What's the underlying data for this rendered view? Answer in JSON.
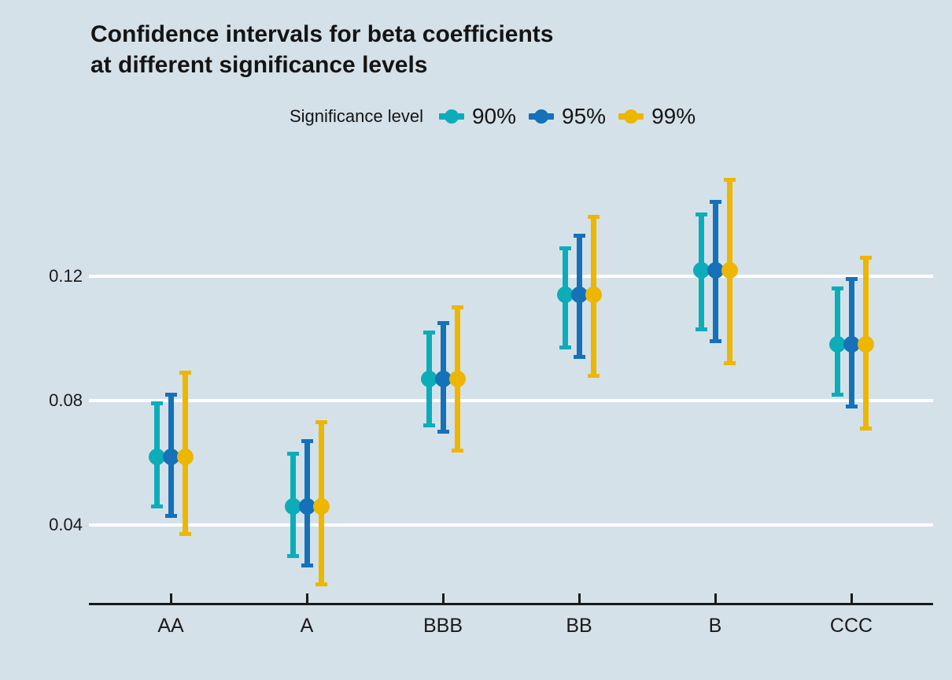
{
  "title": {
    "lines": [
      "Confidence intervals for beta coefficients",
      "at different significance levels"
    ]
  },
  "legend": {
    "title": "Significance level",
    "items": [
      {
        "label": "90%",
        "color": "#0CADB9"
      },
      {
        "label": "95%",
        "color": "#1571B8"
      },
      {
        "label": "99%",
        "color": "#EDB600"
      }
    ]
  },
  "axes": {
    "y_tick_labels": [
      "0.12",
      "0.08",
      "0.04"
    ],
    "x_tick_labels": [
      "AA",
      "A",
      "BBB",
      "BB",
      "B",
      "CCC"
    ]
  },
  "colors": {
    "background": "#D5E1E9",
    "gridline": "#FFFFFF",
    "axis_line": "#1A1A1A",
    "text": "#141414",
    "teal": "#0CADB9",
    "blue": "#1571B8",
    "yellow": "#EDB600"
  },
  "chart_data": {
    "type": "error-bar",
    "title": "Confidence intervals for beta coefficients at different significance levels",
    "legend_title": "Significance level",
    "categories": [
      "AA",
      "A",
      "BBB",
      "BB",
      "B",
      "CCC"
    ],
    "means": [
      0.062,
      0.046,
      0.087,
      0.114,
      0.122,
      0.098
    ],
    "series": [
      {
        "name": "90%",
        "color": "#0CADB9",
        "lower": [
          0.046,
          0.03,
          0.072,
          0.097,
          0.103,
          0.082
        ],
        "upper": [
          0.079,
          0.063,
          0.102,
          0.129,
          0.14,
          0.116
        ]
      },
      {
        "name": "95%",
        "color": "#1571B8",
        "lower": [
          0.043,
          0.027,
          0.07,
          0.094,
          0.099,
          0.078
        ],
        "upper": [
          0.082,
          0.067,
          0.105,
          0.133,
          0.144,
          0.119
        ]
      },
      {
        "name": "99%",
        "color": "#EDB600",
        "lower": [
          0.037,
          0.021,
          0.064,
          0.088,
          0.092,
          0.071
        ],
        "upper": [
          0.089,
          0.073,
          0.11,
          0.139,
          0.151,
          0.126
        ]
      }
    ],
    "yticks": [
      0.04,
      0.08,
      0.12
    ],
    "ylim": [
      0.015,
      0.163
    ],
    "xlabel": "",
    "ylabel": "",
    "grid": "horizontal",
    "legend_position": "top"
  }
}
